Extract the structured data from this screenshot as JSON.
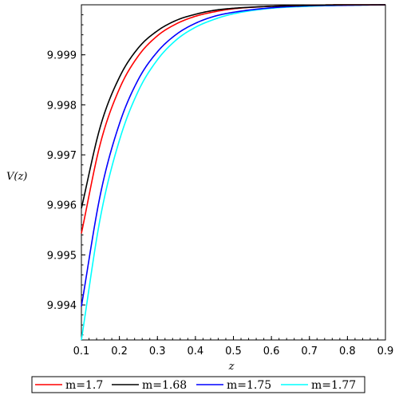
{
  "chart_data": {
    "type": "line",
    "xlabel": "z",
    "ylabel": "V(z)",
    "xlim": [
      0.1,
      0.9
    ],
    "ylim": [
      9.9933,
      10.0
    ],
    "xticks": [
      "0.1",
      "0.2",
      "0.3",
      "0.4",
      "0.5",
      "0.6",
      "0.7",
      "0.8",
      "0.9"
    ],
    "yticks": [
      "9.994",
      "9.995",
      "9.996",
      "9.997",
      "9.998",
      "9.999"
    ],
    "grid": false,
    "legend_position": "bottom",
    "series": [
      {
        "name": "m=1.7",
        "color": "#ff0000",
        "points": [
          [
            0.1,
            9.99543
          ],
          [
            0.15,
            9.99723
          ],
          [
            0.2,
            9.99832
          ],
          [
            0.25,
            9.99898
          ],
          [
            0.3,
            9.99938
          ],
          [
            0.35,
            9.99962
          ],
          [
            0.4,
            9.99977
          ],
          [
            0.45,
            9.99986
          ],
          [
            0.5,
            9.99992
          ],
          [
            0.6,
            9.99997
          ],
          [
            0.7,
            9.99999
          ],
          [
            0.8,
            10.0
          ],
          [
            0.9,
            10.0
          ]
        ]
      },
      {
        "name": "m=1.68",
        "color": "#000000",
        "points": [
          [
            0.1,
            9.99593
          ],
          [
            0.15,
            9.99757
          ],
          [
            0.2,
            9.99855
          ],
          [
            0.25,
            9.99914
          ],
          [
            0.3,
            9.99948
          ],
          [
            0.35,
            9.99969
          ],
          [
            0.4,
            9.99981
          ],
          [
            0.45,
            9.99989
          ],
          [
            0.5,
            9.99993
          ],
          [
            0.6,
            9.99997
          ],
          [
            0.7,
            9.99999
          ],
          [
            0.8,
            10.0
          ],
          [
            0.9,
            10.0
          ]
        ]
      },
      {
        "name": "m=1.75",
        "color": "#0000ff",
        "points": [
          [
            0.1,
            9.99397
          ],
          [
            0.15,
            9.99621
          ],
          [
            0.2,
            9.99762
          ],
          [
            0.25,
            9.99851
          ],
          [
            0.3,
            9.99906
          ],
          [
            0.35,
            9.99941
          ],
          [
            0.4,
            9.99963
          ],
          [
            0.45,
            9.99977
          ],
          [
            0.5,
            9.99985
          ],
          [
            0.6,
            9.99994
          ],
          [
            0.7,
            9.99998
          ],
          [
            0.8,
            9.99999
          ],
          [
            0.9,
            10.0
          ]
        ]
      },
      {
        "name": "m=1.77",
        "color": "#00ffff",
        "points": [
          [
            0.1,
            9.9933
          ],
          [
            0.15,
            9.99575
          ],
          [
            0.2,
            9.99729
          ],
          [
            0.25,
            9.99828
          ],
          [
            0.3,
            9.9989
          ],
          [
            0.35,
            9.9993
          ],
          [
            0.4,
            9.99955
          ],
          [
            0.45,
            9.99971
          ],
          [
            0.5,
            9.99982
          ],
          [
            0.6,
            9.99993
          ],
          [
            0.7,
            9.99997
          ],
          [
            0.8,
            9.99999
          ],
          [
            0.9,
            10.0
          ]
        ]
      }
    ]
  }
}
